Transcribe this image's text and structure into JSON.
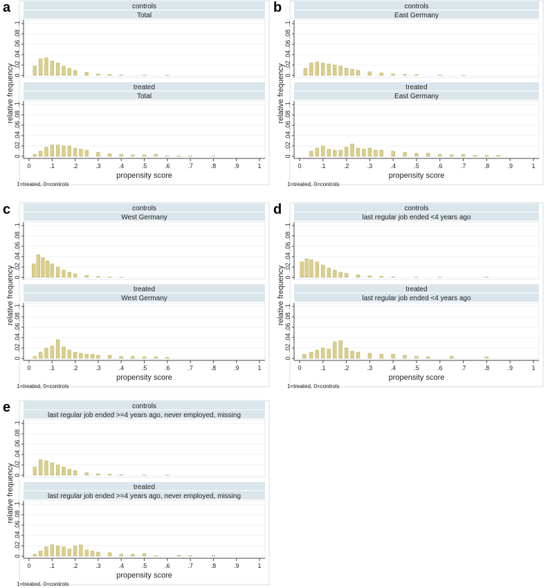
{
  "panel_letters": [
    "a",
    "b",
    "c",
    "d",
    "e"
  ],
  "common": {
    "ylabel": "relative frequency",
    "xlabel": "propensity score",
    "note": "1=treated, 0=controls",
    "x_ticks": [
      "0",
      ".1",
      ".2",
      ".3",
      ".4",
      ".5",
      ".6",
      ".7",
      ".8",
      ".9",
      "1"
    ],
    "y_ticks": [
      "0",
      ".02",
      ".04",
      ".06",
      ".08",
      ".1"
    ],
    "bar_fill": "#d9cf8c",
    "bar_stroke": "#b3a760",
    "strip_fill": "#dbe5ec",
    "plot_bg": "#ffffff",
    "frame_color": "#8c8c8c"
  },
  "chart_data": [
    {
      "type": "bar",
      "panel": "a",
      "xlim": [
        0,
        1
      ],
      "ylim": [
        0,
        0.1
      ],
      "xlabel": "propensity score",
      "ylabel": "relative frequency",
      "note": "1=treated, 0=controls",
      "bin_width": 0.005,
      "subplots": [
        {
          "strip1": "controls",
          "strip2": "Total",
          "series": [
            {
              "x": 0.025,
              "y": 0.018
            },
            {
              "x": 0.05,
              "y": 0.032
            },
            {
              "x": 0.075,
              "y": 0.034
            },
            {
              "x": 0.1,
              "y": 0.028
            },
            {
              "x": 0.125,
              "y": 0.024
            },
            {
              "x": 0.15,
              "y": 0.018
            },
            {
              "x": 0.175,
              "y": 0.014
            },
            {
              "x": 0.2,
              "y": 0.01
            },
            {
              "x": 0.25,
              "y": 0.006
            },
            {
              "x": 0.3,
              "y": 0.003
            },
            {
              "x": 0.35,
              "y": 0.002
            },
            {
              "x": 0.4,
              "y": 0.001
            },
            {
              "x": 0.5,
              "y": 0.0005
            },
            {
              "x": 0.6,
              "y": 0.0003
            }
          ]
        },
        {
          "strip1": "treated",
          "strip2": "Total",
          "series": [
            {
              "x": 0.025,
              "y": 0.004
            },
            {
              "x": 0.05,
              "y": 0.01
            },
            {
              "x": 0.075,
              "y": 0.018
            },
            {
              "x": 0.1,
              "y": 0.022
            },
            {
              "x": 0.125,
              "y": 0.022
            },
            {
              "x": 0.15,
              "y": 0.02
            },
            {
              "x": 0.175,
              "y": 0.02
            },
            {
              "x": 0.2,
              "y": 0.016
            },
            {
              "x": 0.225,
              "y": 0.014
            },
            {
              "x": 0.25,
              "y": 0.012
            },
            {
              "x": 0.3,
              "y": 0.008
            },
            {
              "x": 0.35,
              "y": 0.005
            },
            {
              "x": 0.4,
              "y": 0.004
            },
            {
              "x": 0.45,
              "y": 0.003
            },
            {
              "x": 0.5,
              "y": 0.003
            },
            {
              "x": 0.55,
              "y": 0.004
            },
            {
              "x": 0.6,
              "y": 0.001
            },
            {
              "x": 0.65,
              "y": 0.001
            },
            {
              "x": 0.7,
              "y": 0.001
            },
            {
              "x": 0.8,
              "y": 0.0005
            }
          ]
        }
      ]
    },
    {
      "type": "bar",
      "panel": "b",
      "xlim": [
        0,
        1
      ],
      "ylim": [
        0,
        0.1
      ],
      "xlabel": "propensity score",
      "ylabel": "relative frequency",
      "note": "1=treated, 0=controls",
      "bin_width": 0.005,
      "subplots": [
        {
          "strip1": "controls",
          "strip2": "East Germany",
          "series": [
            {
              "x": 0.025,
              "y": 0.014
            },
            {
              "x": 0.05,
              "y": 0.024
            },
            {
              "x": 0.075,
              "y": 0.026
            },
            {
              "x": 0.1,
              "y": 0.024
            },
            {
              "x": 0.125,
              "y": 0.022
            },
            {
              "x": 0.15,
              "y": 0.02
            },
            {
              "x": 0.175,
              "y": 0.018
            },
            {
              "x": 0.2,
              "y": 0.014
            },
            {
              "x": 0.225,
              "y": 0.012
            },
            {
              "x": 0.25,
              "y": 0.01
            },
            {
              "x": 0.3,
              "y": 0.007
            },
            {
              "x": 0.35,
              "y": 0.005
            },
            {
              "x": 0.4,
              "y": 0.003
            },
            {
              "x": 0.45,
              "y": 0.002
            },
            {
              "x": 0.5,
              "y": 0.0015
            },
            {
              "x": 0.6,
              "y": 0.0008
            },
            {
              "x": 0.7,
              "y": 0.0004
            }
          ]
        },
        {
          "strip1": "treated",
          "strip2": "East Germany",
          "series": [
            {
              "x": 0.05,
              "y": 0.01
            },
            {
              "x": 0.075,
              "y": 0.016
            },
            {
              "x": 0.1,
              "y": 0.02
            },
            {
              "x": 0.125,
              "y": 0.014
            },
            {
              "x": 0.15,
              "y": 0.012
            },
            {
              "x": 0.175,
              "y": 0.012
            },
            {
              "x": 0.2,
              "y": 0.018
            },
            {
              "x": 0.225,
              "y": 0.024
            },
            {
              "x": 0.25,
              "y": 0.016
            },
            {
              "x": 0.275,
              "y": 0.014
            },
            {
              "x": 0.3,
              "y": 0.016
            },
            {
              "x": 0.325,
              "y": 0.012
            },
            {
              "x": 0.35,
              "y": 0.012
            },
            {
              "x": 0.4,
              "y": 0.01
            },
            {
              "x": 0.45,
              "y": 0.008
            },
            {
              "x": 0.5,
              "y": 0.006
            },
            {
              "x": 0.55,
              "y": 0.006
            },
            {
              "x": 0.6,
              "y": 0.004
            },
            {
              "x": 0.65,
              "y": 0.003
            },
            {
              "x": 0.7,
              "y": 0.004
            },
            {
              "x": 0.75,
              "y": 0.002
            },
            {
              "x": 0.8,
              "y": 0.002
            },
            {
              "x": 0.85,
              "y": 0.002
            }
          ]
        }
      ]
    },
    {
      "type": "bar",
      "panel": "c",
      "xlim": [
        0,
        1
      ],
      "ylim": [
        0,
        0.1
      ],
      "xlabel": "propensity score",
      "ylabel": "relative frequency",
      "note": "1=treated, 0=controls",
      "bin_width": 0.005,
      "subplots": [
        {
          "strip1": "controls",
          "strip2": "West Germany",
          "series": [
            {
              "x": 0.02,
              "y": 0.026
            },
            {
              "x": 0.04,
              "y": 0.044
            },
            {
              "x": 0.06,
              "y": 0.038
            },
            {
              "x": 0.08,
              "y": 0.032
            },
            {
              "x": 0.1,
              "y": 0.026
            },
            {
              "x": 0.125,
              "y": 0.02
            },
            {
              "x": 0.15,
              "y": 0.014
            },
            {
              "x": 0.175,
              "y": 0.01
            },
            {
              "x": 0.2,
              "y": 0.007
            },
            {
              "x": 0.25,
              "y": 0.004
            },
            {
              "x": 0.3,
              "y": 0.002
            },
            {
              "x": 0.35,
              "y": 0.001
            },
            {
              "x": 0.4,
              "y": 0.0005
            }
          ]
        },
        {
          "strip1": "treated",
          "strip2": "West Germany",
          "series": [
            {
              "x": 0.025,
              "y": 0.004
            },
            {
              "x": 0.05,
              "y": 0.012
            },
            {
              "x": 0.075,
              "y": 0.02
            },
            {
              "x": 0.1,
              "y": 0.024
            },
            {
              "x": 0.125,
              "y": 0.036
            },
            {
              "x": 0.15,
              "y": 0.022
            },
            {
              "x": 0.175,
              "y": 0.016
            },
            {
              "x": 0.2,
              "y": 0.012
            },
            {
              "x": 0.225,
              "y": 0.01
            },
            {
              "x": 0.25,
              "y": 0.008
            },
            {
              "x": 0.275,
              "y": 0.008
            },
            {
              "x": 0.3,
              "y": 0.006
            },
            {
              "x": 0.35,
              "y": 0.006
            },
            {
              "x": 0.4,
              "y": 0.004
            },
            {
              "x": 0.45,
              "y": 0.004
            },
            {
              "x": 0.5,
              "y": 0.003
            },
            {
              "x": 0.55,
              "y": 0.003
            },
            {
              "x": 0.6,
              "y": 0.002
            }
          ]
        }
      ]
    },
    {
      "type": "bar",
      "panel": "d",
      "xlim": [
        0,
        1
      ],
      "ylim": [
        0,
        0.1
      ],
      "xlabel": "propensity score",
      "ylabel": "relative frequency",
      "note": "1=treated, 0=controls",
      "bin_width": 0.005,
      "subplots": [
        {
          "strip1": "controls",
          "strip2": "last regular job ended <4 years ago",
          "series": [
            {
              "x": 0.01,
              "y": 0.03
            },
            {
              "x": 0.03,
              "y": 0.036
            },
            {
              "x": 0.05,
              "y": 0.034
            },
            {
              "x": 0.075,
              "y": 0.03
            },
            {
              "x": 0.1,
              "y": 0.024
            },
            {
              "x": 0.125,
              "y": 0.018
            },
            {
              "x": 0.15,
              "y": 0.014
            },
            {
              "x": 0.175,
              "y": 0.01
            },
            {
              "x": 0.2,
              "y": 0.008
            },
            {
              "x": 0.25,
              "y": 0.005
            },
            {
              "x": 0.3,
              "y": 0.003
            },
            {
              "x": 0.35,
              "y": 0.002
            },
            {
              "x": 0.4,
              "y": 0.001
            },
            {
              "x": 0.5,
              "y": 0.0005
            },
            {
              "x": 0.6,
              "y": 0.0004
            },
            {
              "x": 0.8,
              "y": 0.0008
            }
          ]
        },
        {
          "strip1": "treated",
          "strip2": "last regular job ended <4 years ago",
          "series": [
            {
              "x": 0.02,
              "y": 0.008
            },
            {
              "x": 0.05,
              "y": 0.012
            },
            {
              "x": 0.075,
              "y": 0.016
            },
            {
              "x": 0.1,
              "y": 0.02
            },
            {
              "x": 0.125,
              "y": 0.018
            },
            {
              "x": 0.15,
              "y": 0.032
            },
            {
              "x": 0.175,
              "y": 0.034
            },
            {
              "x": 0.2,
              "y": 0.02
            },
            {
              "x": 0.225,
              "y": 0.014
            },
            {
              "x": 0.25,
              "y": 0.012
            },
            {
              "x": 0.3,
              "y": 0.01
            },
            {
              "x": 0.35,
              "y": 0.008
            },
            {
              "x": 0.4,
              "y": 0.008
            },
            {
              "x": 0.45,
              "y": 0.006
            },
            {
              "x": 0.5,
              "y": 0.004
            },
            {
              "x": 0.55,
              "y": 0.003
            },
            {
              "x": 0.65,
              "y": 0.004
            },
            {
              "x": 0.8,
              "y": 0.003
            }
          ]
        }
      ]
    },
    {
      "type": "bar",
      "panel": "e",
      "xlim": [
        0,
        1
      ],
      "ylim": [
        0,
        0.1
      ],
      "xlabel": "propensity score",
      "ylabel": "relative frequency",
      "note": "1=treated, 0=controls",
      "bin_width": 0.005,
      "subplots": [
        {
          "strip1": "controls",
          "strip2": "last regular job ended >=4 years ago, never employed, missing",
          "series": [
            {
              "x": 0.025,
              "y": 0.016
            },
            {
              "x": 0.05,
              "y": 0.03
            },
            {
              "x": 0.075,
              "y": 0.028
            },
            {
              "x": 0.1,
              "y": 0.024
            },
            {
              "x": 0.125,
              "y": 0.02
            },
            {
              "x": 0.15,
              "y": 0.016
            },
            {
              "x": 0.175,
              "y": 0.012
            },
            {
              "x": 0.2,
              "y": 0.009
            },
            {
              "x": 0.25,
              "y": 0.005
            },
            {
              "x": 0.3,
              "y": 0.003
            },
            {
              "x": 0.35,
              "y": 0.002
            },
            {
              "x": 0.4,
              "y": 0.001
            },
            {
              "x": 0.5,
              "y": 0.0005
            },
            {
              "x": 0.6,
              "y": 0.0003
            }
          ]
        },
        {
          "strip1": "treated",
          "strip2": "last regular job ended >=4 years ago, never employed, missing",
          "series": [
            {
              "x": 0.025,
              "y": 0.004
            },
            {
              "x": 0.05,
              "y": 0.01
            },
            {
              "x": 0.075,
              "y": 0.018
            },
            {
              "x": 0.1,
              "y": 0.022
            },
            {
              "x": 0.125,
              "y": 0.02
            },
            {
              "x": 0.15,
              "y": 0.018
            },
            {
              "x": 0.175,
              "y": 0.014
            },
            {
              "x": 0.2,
              "y": 0.02
            },
            {
              "x": 0.225,
              "y": 0.022
            },
            {
              "x": 0.25,
              "y": 0.012
            },
            {
              "x": 0.275,
              "y": 0.01
            },
            {
              "x": 0.3,
              "y": 0.008
            },
            {
              "x": 0.35,
              "y": 0.007
            },
            {
              "x": 0.4,
              "y": 0.004
            },
            {
              "x": 0.45,
              "y": 0.004
            },
            {
              "x": 0.5,
              "y": 0.005
            },
            {
              "x": 0.55,
              "y": 0.001
            },
            {
              "x": 0.65,
              "y": 0.002
            },
            {
              "x": 0.7,
              "y": 0.001
            },
            {
              "x": 0.8,
              "y": 0.001
            }
          ]
        }
      ]
    }
  ]
}
